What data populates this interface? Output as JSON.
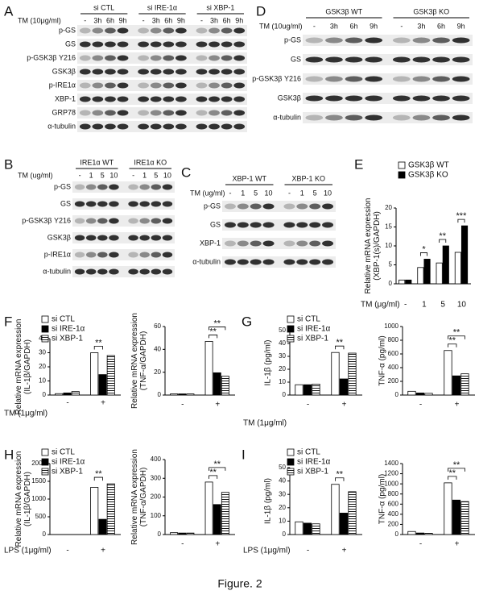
{
  "panel_letters": [
    "A",
    "B",
    "C",
    "D",
    "E",
    "F",
    "G",
    "H",
    "I"
  ],
  "caption": "Figure. 2",
  "blots": [
    {
      "treatment": "TM (10μg/ml)",
      "groups": [
        {
          "name": "si CTL",
          "lanes": [
            "-",
            "3h",
            "6h",
            "9h"
          ]
        },
        {
          "name": "si IRE-1α",
          "lanes": [
            "-",
            "3h",
            "6h",
            "9h"
          ]
        },
        {
          "name": "si XBP-1",
          "lanes": [
            "-",
            "3h",
            "6h",
            "9h"
          ]
        }
      ],
      "rows": [
        "p-GS",
        "GS",
        "p-GSK3β Y216",
        "GSK3β",
        "p-IRE1α",
        "XBP-1",
        "GRP78",
        "α-tubulin"
      ]
    },
    {
      "treatment": "TM (ug/ml)",
      "groups": [
        {
          "name": "IRE1α WT",
          "lanes": [
            "-",
            "1",
            "5",
            "10"
          ]
        },
        {
          "name": "IRE1α KO",
          "lanes": [
            "-",
            "1",
            "5",
            "10"
          ]
        }
      ],
      "rows": [
        "p-GS",
        "GS",
        "p-GSK3β Y216",
        "GSK3β",
        "p-IRE1α",
        "α-tubulin"
      ]
    },
    {
      "treatment": "TM (ug/ml)",
      "groups": [
        {
          "name": "XBP-1 WT",
          "lanes": [
            "-",
            "1",
            "5",
            "10"
          ]
        },
        {
          "name": "XBP-1 KO",
          "lanes": [
            "-",
            "1",
            "5",
            "10"
          ]
        }
      ],
      "rows": [
        "p-GS",
        "GS",
        "XBP-1",
        "α-tubulin"
      ]
    },
    {
      "treatment": "TM (10ug/ml)",
      "groups": [
        {
          "name": "GSK3β WT",
          "lanes": [
            "-",
            "3h",
            "6h",
            "9h"
          ]
        },
        {
          "name": "GSK3β KO",
          "lanes": [
            "-",
            "3h",
            "6h",
            "9h"
          ]
        }
      ],
      "rows": [
        "p-GS",
        "GS",
        "p-GSK3β Y216",
        "GSK3β",
        "α-tubulin"
      ]
    }
  ],
  "chart_data": [
    {
      "type": "bar",
      "ylabel": [
        "Relative mRNA expression",
        "(XBP-1(s)/GAPDH)"
      ],
      "xlabel": "TM (μg/ml)",
      "categories": [
        "-",
        "1",
        "5",
        "10"
      ],
      "series": [
        {
          "name": "GSK3β WT",
          "color": "#ffffff",
          "values": [
            1,
            4.3,
            5.5,
            8.3
          ]
        },
        {
          "name": "GSK3β KO",
          "color": "#000000",
          "values": [
            1,
            6.5,
            10,
            15.3
          ]
        }
      ],
      "ylim": [
        0,
        20
      ],
      "yticks": [
        0,
        5,
        10,
        15,
        20
      ],
      "significance": [
        null,
        "*",
        "**",
        "***"
      ]
    },
    {
      "type": "bar",
      "ylabel": [
        "Relative mRNA expression",
        "(IL-1β/GAPDH)"
      ],
      "xlabel": "TM (1μg/ml)",
      "categories": [
        "-",
        "+"
      ],
      "series": [
        {
          "name": "si CTL",
          "color": "#ffffff",
          "values": [
            1,
            30
          ]
        },
        {
          "name": "si IRE-1α",
          "color": "#000000",
          "values": [
            1.5,
            14.5
          ]
        },
        {
          "name": "si XBP-1",
          "color": "#ffffff",
          "hatch": true,
          "values": [
            2.5,
            28
          ]
        }
      ],
      "ylim": [
        0,
        40
      ],
      "yticks": [
        0,
        10,
        20,
        30,
        40
      ],
      "significance": [
        "**"
      ]
    },
    {
      "type": "bar",
      "ylabel": [
        "Relative mRNA expression",
        "(TNF-α/GAPDH)"
      ],
      "categories": [
        "-",
        "+"
      ],
      "series": [
        {
          "color": "#ffffff",
          "values": [
            1,
            47
          ]
        },
        {
          "color": "#000000",
          "values": [
            1,
            19.5
          ]
        },
        {
          "color": "#ffffff",
          "hatch": true,
          "values": [
            1,
            16.5
          ]
        }
      ],
      "ylim": [
        0,
        60
      ],
      "yticks": [
        0,
        20,
        40,
        60
      ],
      "significance": [
        "**",
        "**"
      ]
    },
    {
      "type": "bar",
      "ylabel": "IL-1β (pg/ml)",
      "xlabel": "TM (1μg/ml)",
      "categories": [
        "-",
        "+"
      ],
      "series": [
        {
          "name": "si CTL",
          "color": "#ffffff",
          "values": [
            8,
            33
          ]
        },
        {
          "name": "si IRE-1α",
          "color": "#000000",
          "values": [
            8,
            12.5
          ]
        },
        {
          "name": "si XBP-1",
          "color": "#ffffff",
          "hatch": true,
          "values": [
            8.5,
            32.5
          ]
        }
      ],
      "ylim": [
        0,
        50
      ],
      "yticks": [
        0,
        10,
        20,
        30,
        40,
        50
      ],
      "significance": [
        "**"
      ]
    },
    {
      "type": "bar",
      "ylabel": "TNF-α (pg/ml)",
      "categories": [
        "-",
        "+"
      ],
      "series": [
        {
          "color": "#ffffff",
          "values": [
            55,
            650
          ]
        },
        {
          "color": "#000000",
          "values": [
            30,
            280
          ]
        },
        {
          "color": "#ffffff",
          "hatch": true,
          "values": [
            25,
            310
          ]
        }
      ],
      "ylim": [
        0,
        1000
      ],
      "yticks": [
        0,
        200,
        400,
        600,
        800,
        1000
      ],
      "significance": [
        "**",
        "**"
      ]
    },
    {
      "type": "bar",
      "ylabel": [
        "Relative mRNA expression",
        "(IL-1β/GAPDH)"
      ],
      "xlabel": "LPS (1μg/ml)",
      "categories": [
        "-",
        "+"
      ],
      "series": [
        {
          "name": "si CTL",
          "color": "#ffffff",
          "values": [
            0,
            1330
          ]
        },
        {
          "name": "si IRE-1α",
          "color": "#000000",
          "values": [
            0,
            430
          ]
        },
        {
          "name": "si XBP-1",
          "color": "#ffffff",
          "hatch": true,
          "values": [
            0,
            1430
          ]
        }
      ],
      "ylim": [
        0,
        2000
      ],
      "yticks": [
        0,
        500,
        1000,
        1500,
        2000
      ],
      "significance": [
        "**"
      ]
    },
    {
      "type": "bar",
      "ylabel": [
        "Relative mRNA expression",
        "(TNF-α/GAPDH)"
      ],
      "categories": [
        "-",
        "+"
      ],
      "series": [
        {
          "color": "#ffffff",
          "values": [
            10,
            280
          ]
        },
        {
          "color": "#000000",
          "values": [
            8,
            160
          ]
        },
        {
          "color": "#ffffff",
          "hatch": true,
          "values": [
            8,
            225
          ]
        }
      ],
      "ylim": [
        0,
        400
      ],
      "yticks": [
        0,
        100,
        200,
        300,
        400
      ],
      "significance": [
        "**",
        "**"
      ]
    },
    {
      "type": "bar",
      "ylabel": "IL-1β (pg/ml)",
      "xlabel": "LPS (1μg/ml)",
      "categories": [
        "-",
        "+"
      ],
      "series": [
        {
          "name": "si CTL",
          "color": "#ffffff",
          "values": [
            9.5,
            37.5
          ]
        },
        {
          "name": "si IRE-1α",
          "color": "#000000",
          "values": [
            8.5,
            16
          ]
        },
        {
          "name": "si XBP-1",
          "color": "#ffffff",
          "hatch": true,
          "values": [
            8,
            32
          ]
        }
      ],
      "ylim": [
        0,
        50
      ],
      "yticks": [
        0,
        10,
        20,
        30,
        40,
        50
      ],
      "significance": [
        "**"
      ]
    },
    {
      "type": "bar",
      "ylabel": "TNF-α (pg/ml)",
      "categories": [
        "-",
        "+"
      ],
      "series": [
        {
          "color": "#ffffff",
          "values": [
            60,
            1020
          ]
        },
        {
          "color": "#000000",
          "values": [
            30,
            680
          ]
        },
        {
          "color": "#ffffff",
          "hatch": true,
          "values": [
            25,
            650
          ]
        }
      ],
      "ylim": [
        0,
        1400
      ],
      "yticks": [
        0,
        200,
        400,
        600,
        800,
        1000,
        1200,
        1400
      ],
      "significance": [
        "**",
        "**"
      ]
    }
  ]
}
